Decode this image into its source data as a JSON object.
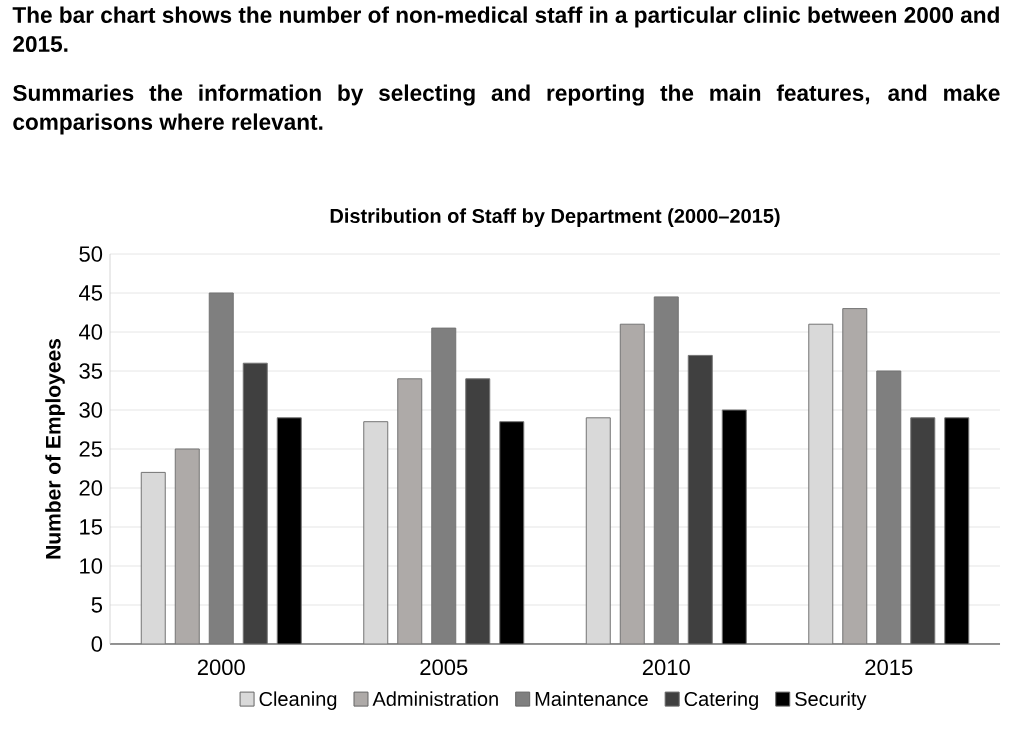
{
  "chart_data": {
    "type": "bar",
    "title": "Distribution of Staff by Department (2000–2015)",
    "annotations": [
      "The bar chart shows the number of non-medical staff in a particular clinic between 2000 and 2015.",
      "Summaries the information by selecting and reporting the main features, and make comparisons where relevant."
    ],
    "ylabel": "Number of Employees",
    "categories": [
      "2000",
      "2005",
      "2010",
      "2015"
    ],
    "series": [
      {
        "name": "Cleaning",
        "color": "#d9d9d9",
        "values": [
          22,
          28.5,
          29,
          41
        ]
      },
      {
        "name": "Administration",
        "color": "#aeaaa8",
        "values": [
          25,
          34,
          41,
          43
        ]
      },
      {
        "name": "Maintenance",
        "color": "#7f7f7f",
        "values": [
          45,
          40.5,
          44.5,
          35
        ]
      },
      {
        "name": "Catering",
        "color": "#404040",
        "values": [
          36,
          34,
          37,
          29
        ]
      },
      {
        "name": "Security",
        "color": "#000000",
        "values": [
          29,
          28.5,
          30,
          29
        ]
      }
    ],
    "ylim": [
      0,
      50
    ],
    "yticks": [
      0,
      5,
      10,
      15,
      20,
      25,
      30,
      35,
      40,
      45,
      50
    ],
    "grid": "y",
    "legend": "bottom"
  }
}
